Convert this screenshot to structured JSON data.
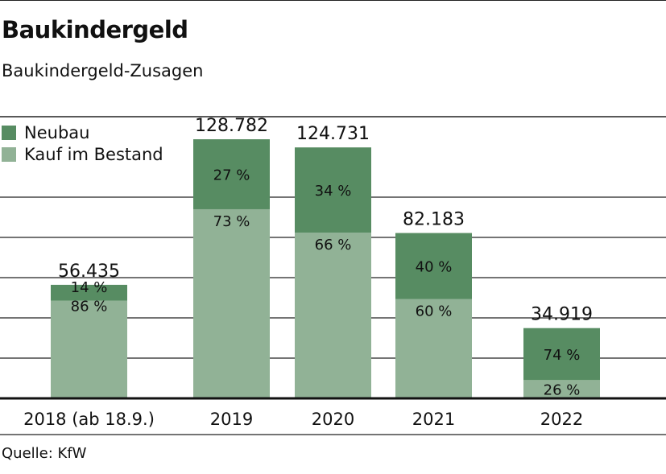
{
  "header": {
    "title": "Baukindergeld",
    "subtitle": "Baukindergeld-Zusagen"
  },
  "footer": {
    "source": "Quelle: KfW"
  },
  "colors": {
    "neubau": "#578c62",
    "bestand": "#91b296"
  },
  "chart_data": {
    "type": "bar",
    "stacked": true,
    "categories": [
      "2018 (ab 18.9.)",
      "2019",
      "2020",
      "2021",
      "2022"
    ],
    "totals": [
      56435,
      128782,
      124731,
      82183,
      34919
    ],
    "total_labels": [
      "56.435",
      "128.782",
      "124.731",
      "82.183",
      "34.919"
    ],
    "series": [
      {
        "name": "Kauf im Bestand",
        "shares": [
          86,
          73,
          66,
          60,
          26
        ],
        "labels": [
          "86 %",
          "73 %",
          "66 %",
          "60 %",
          "26 %"
        ]
      },
      {
        "name": "Neubau",
        "shares": [
          14,
          27,
          34,
          40,
          74
        ],
        "labels": [
          "14 %",
          "27 %",
          "34 %",
          "40 %",
          "74 %"
        ]
      }
    ],
    "ylim": [
      0,
      140000
    ],
    "grid": true,
    "legend_position": "top-left"
  }
}
